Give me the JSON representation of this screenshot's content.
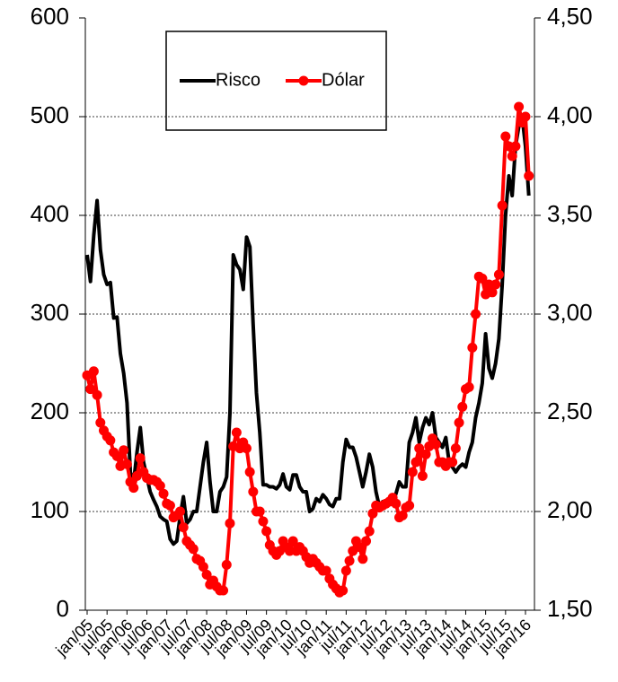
{
  "chart_data": {
    "type": "line",
    "categories": [
      "jan/05",
      null,
      null,
      null,
      null,
      null,
      "jul/05",
      null,
      null,
      null,
      null,
      null,
      "jan/06",
      null,
      null,
      null,
      null,
      null,
      "jul/06",
      null,
      null,
      null,
      null,
      null,
      "jan/07",
      null,
      null,
      null,
      null,
      null,
      "jul/07",
      null,
      null,
      null,
      null,
      null,
      "jan/08",
      null,
      null,
      null,
      null,
      null,
      "jul/08",
      null,
      null,
      null,
      null,
      null,
      "jan/09",
      null,
      null,
      null,
      null,
      null,
      "jul/09",
      null,
      null,
      null,
      null,
      null,
      "jan/10",
      null,
      null,
      null,
      null,
      null,
      "jul/10",
      null,
      null,
      null,
      null,
      null,
      "jan/11",
      null,
      null,
      null,
      null,
      null,
      "jul/11",
      null,
      null,
      null,
      null,
      null,
      "jan/12",
      null,
      null,
      null,
      null,
      null,
      "jul/12",
      null,
      null,
      null,
      null,
      null,
      "jan/13",
      null,
      null,
      null,
      null,
      null,
      "jul/13",
      null,
      null,
      null,
      null,
      null,
      "jan/14",
      null,
      null,
      null,
      null,
      null,
      "jul/14",
      null,
      null,
      null,
      null,
      null,
      "jan/15",
      null,
      null,
      null,
      null,
      null,
      "jul/15",
      null,
      null,
      null,
      null,
      null,
      "jan/16",
      null
    ],
    "series": [
      {
        "name": "Risco",
        "color": "#000000",
        "markers": false,
        "values": [
          360,
          333,
          380,
          415,
          365,
          340,
          330,
          332,
          296,
          297,
          260,
          240,
          210,
          140,
          130,
          160,
          185,
          150,
          135,
          120,
          112,
          105,
          95,
          92,
          90,
          72,
          67,
          70,
          95,
          115,
          88,
          92,
          100,
          100,
          125,
          150,
          170,
          130,
          100,
          100,
          120,
          125,
          135,
          200,
          360,
          350,
          345,
          325,
          378,
          368,
          290,
          220,
          180,
          127,
          127,
          125,
          125,
          123,
          127,
          138,
          125,
          122,
          137,
          137,
          125,
          120,
          120,
          100,
          103,
          113,
          110,
          117,
          113,
          107,
          105,
          113,
          113,
          150,
          173,
          165,
          165,
          155,
          140,
          125,
          140,
          158,
          145,
          120,
          105,
          110,
          110,
          112,
          110,
          118,
          130,
          125,
          125,
          170,
          180,
          195,
          170,
          185,
          195,
          188,
          200,
          175,
          170,
          165,
          175,
          150,
          145,
          140,
          145,
          148,
          145,
          160,
          170,
          195,
          210,
          230,
          280,
          245,
          235,
          250,
          275,
          330,
          400,
          440,
          420,
          470,
          490,
          500,
          470,
          420
        ]
      },
      {
        "name": "Dólar",
        "color": "#ff0000",
        "axis": "y2",
        "markers": true,
        "values": [
          2.69,
          2.62,
          2.71,
          2.59,
          2.45,
          2.41,
          2.38,
          2.36,
          2.3,
          2.28,
          2.23,
          2.31,
          2.24,
          2.15,
          2.12,
          2.18,
          2.27,
          2.2,
          2.17,
          2.16,
          2.16,
          2.15,
          2.13,
          2.09,
          2.04,
          2.03,
          1.97,
          1.98,
          2.0,
          1.92,
          1.85,
          1.83,
          1.81,
          1.76,
          1.75,
          1.72,
          1.68,
          1.63,
          1.65,
          1.62,
          1.6,
          1.6,
          1.73,
          1.94,
          2.33,
          2.4,
          2.32,
          2.35,
          2.32,
          2.2,
          2.1,
          2.0,
          2.0,
          1.95,
          1.9,
          1.83,
          1.8,
          1.78,
          1.8,
          1.85,
          1.82,
          1.8,
          1.85,
          1.8,
          1.82,
          1.8,
          1.77,
          1.74,
          1.76,
          1.74,
          1.72,
          1.7,
          1.7,
          1.66,
          1.63,
          1.61,
          1.59,
          1.6,
          1.7,
          1.75,
          1.8,
          1.85,
          1.82,
          1.76,
          1.85,
          1.9,
          1.99,
          2.03,
          2.02,
          2.03,
          2.04,
          2.05,
          2.07,
          2.04,
          1.97,
          1.98,
          2.02,
          2.03,
          2.2,
          2.25,
          2.32,
          2.18,
          2.29,
          2.33,
          2.37,
          2.34,
          2.25,
          2.25,
          2.23,
          2.25,
          2.25,
          2.32,
          2.45,
          2.53,
          2.62,
          2.63,
          2.83,
          3.0,
          3.19,
          3.18,
          3.1,
          3.15,
          3.11,
          3.15,
          3.2,
          3.55,
          3.9,
          3.85,
          3.8,
          3.85,
          4.05,
          3.97,
          4.0,
          3.7
        ]
      }
    ],
    "ylim": [
      0,
      600
    ],
    "yticks": [
      0,
      100,
      200,
      300,
      400,
      500,
      600
    ],
    "y2lim": [
      1.5,
      4.5
    ],
    "y2ticks": [
      {
        "value": 1.5,
        "label": "1,50"
      },
      {
        "value": 2,
        "label": "2,00"
      },
      {
        "value": 2.5,
        "label": "2,50"
      },
      {
        "value": 3,
        "label": "3,00"
      },
      {
        "value": 3.5,
        "label": "3,50"
      },
      {
        "value": 4,
        "label": "4,00"
      },
      {
        "value": 4.5,
        "label": "4,50"
      }
    ],
    "grid": true
  }
}
